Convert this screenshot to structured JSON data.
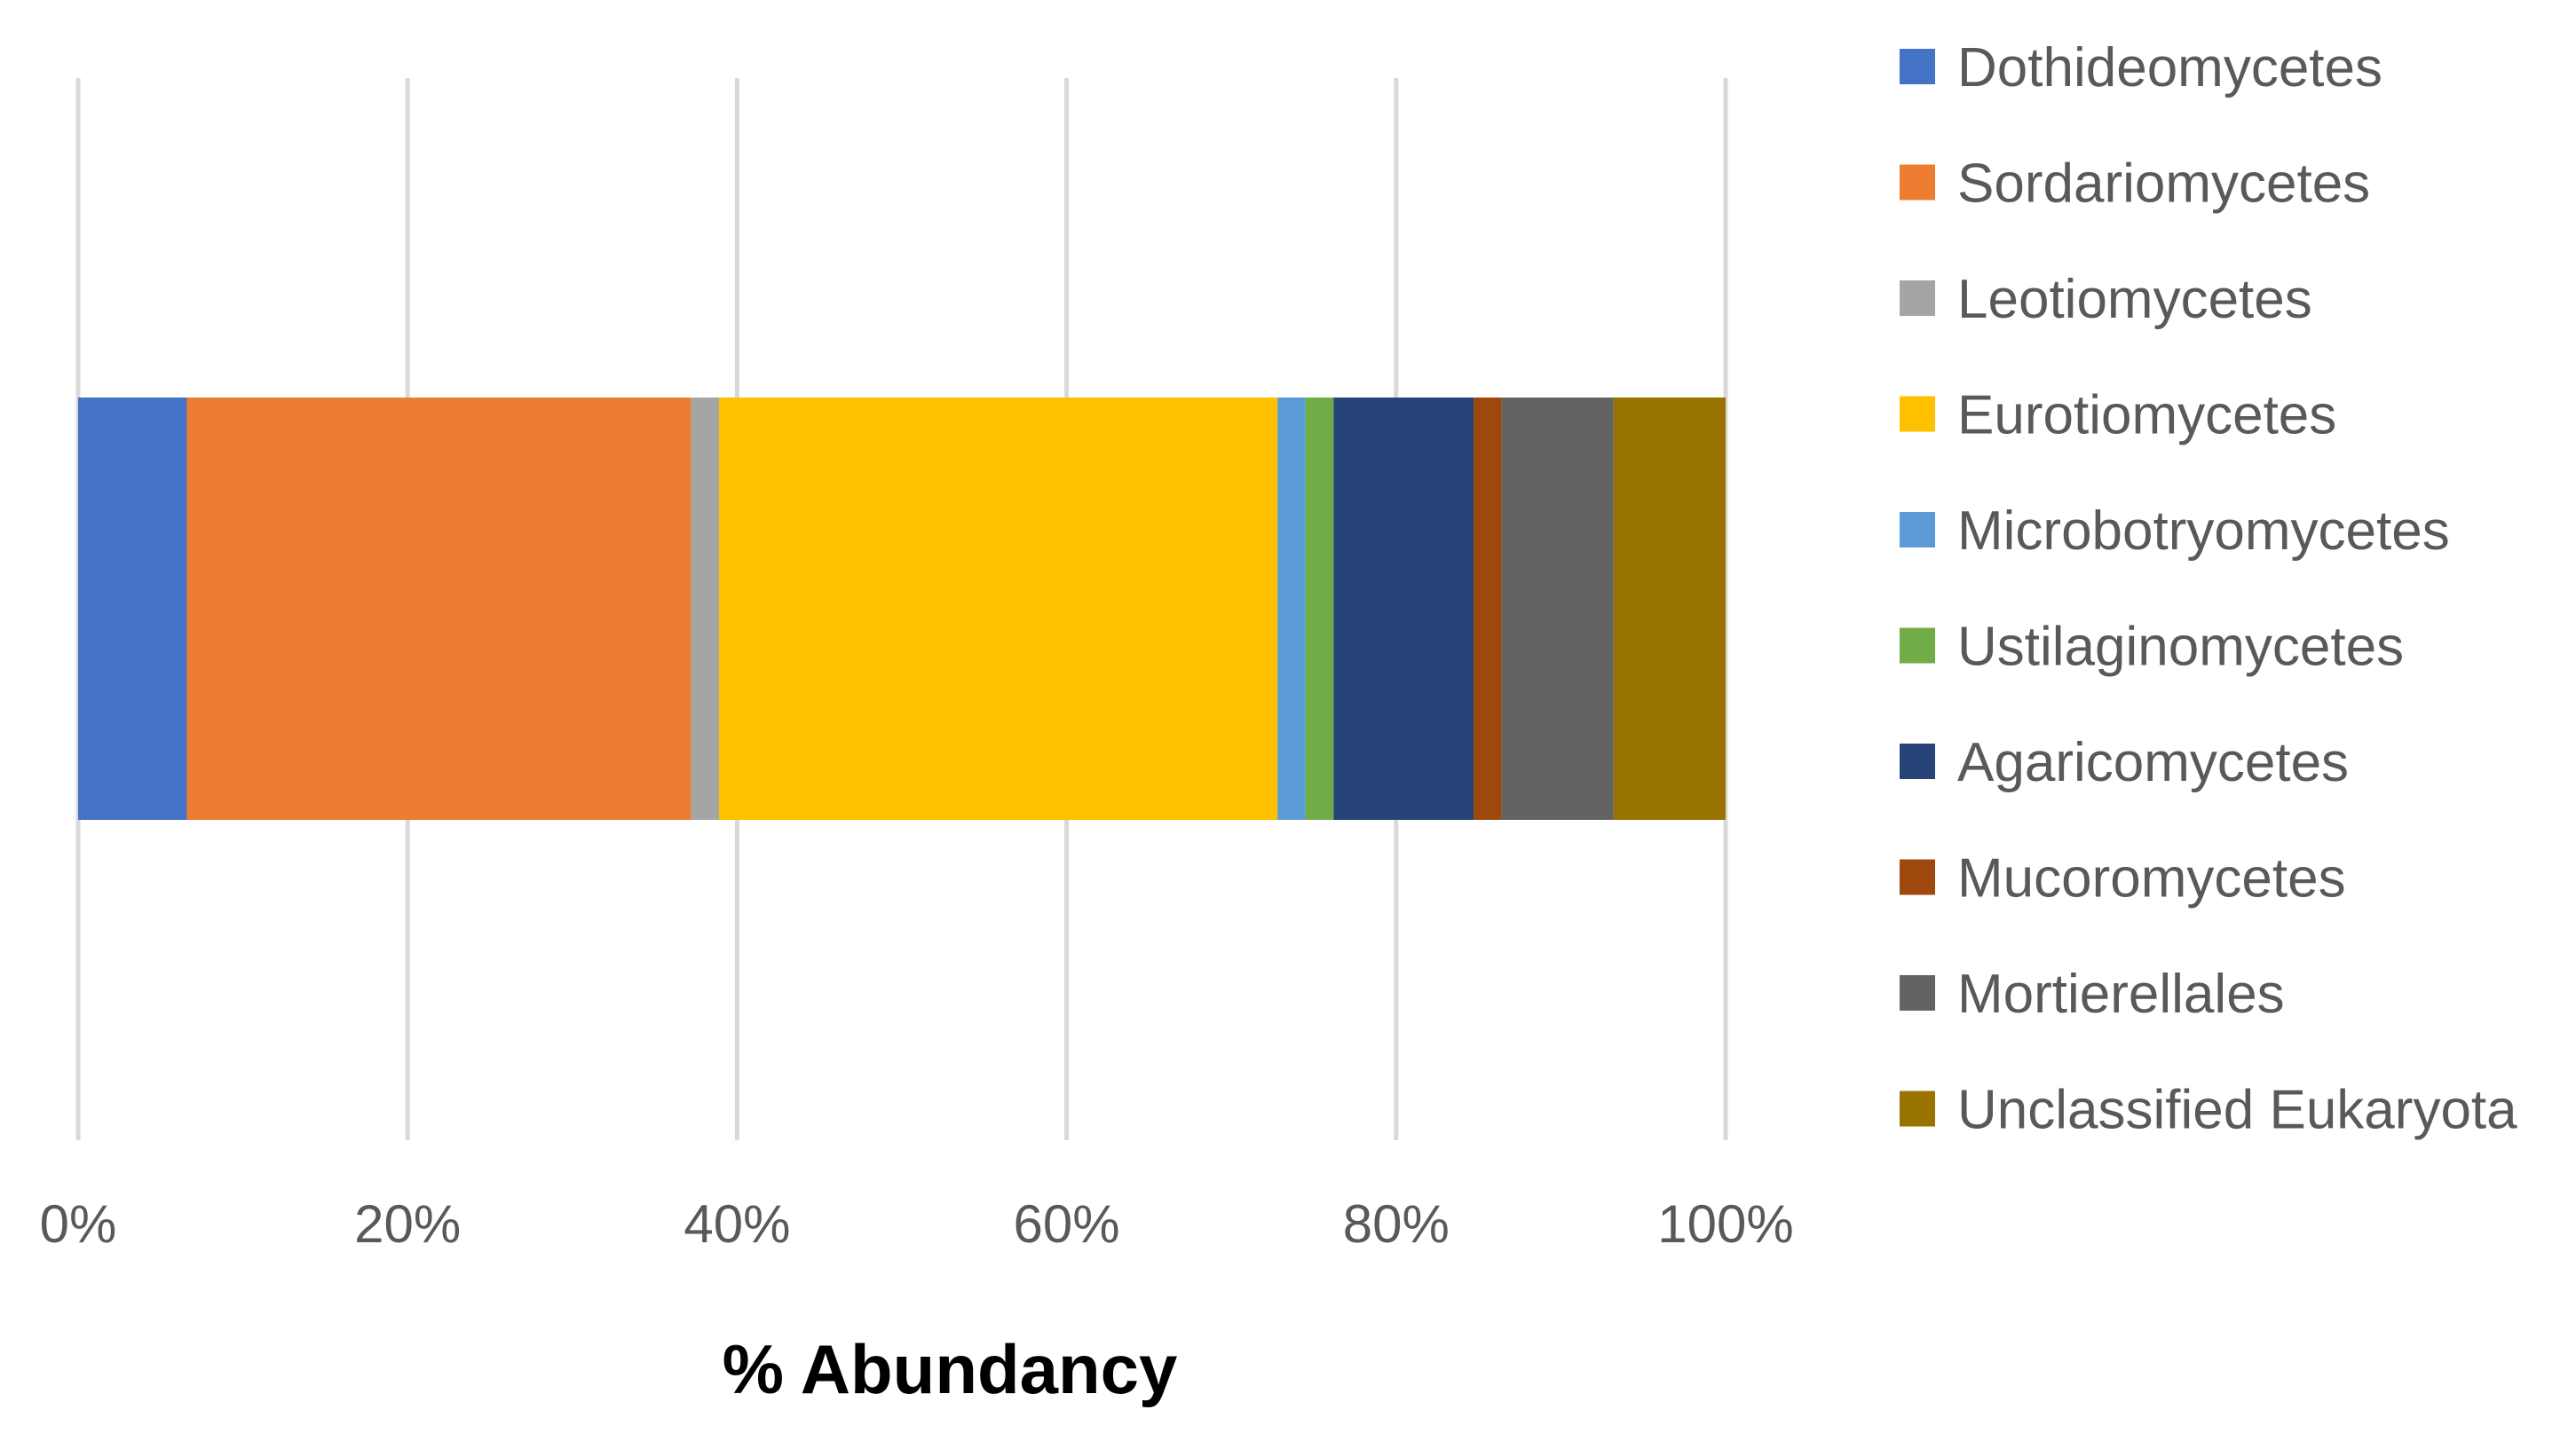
{
  "chart_data": {
    "type": "bar",
    "orientation": "horizontal",
    "stacked": "100%",
    "xlabel": "% Abundancy",
    "ylabel": "",
    "xlim": [
      0,
      100
    ],
    "x_ticks": [
      "0%",
      "20%",
      "40%",
      "60%",
      "80%",
      "100%"
    ],
    "grid": true,
    "legend_position": "right",
    "series": [
      {
        "name": "Dothideomycetes",
        "value": 6.6,
        "color": "#4472C4"
      },
      {
        "name": "Sordariomycetes",
        "value": 30.6,
        "color": "#ED7D31"
      },
      {
        "name": "Leotiomycetes",
        "value": 1.7,
        "color": "#A5A5A5"
      },
      {
        "name": "Eurotiomycetes",
        "value": 33.9,
        "color": "#FFC000"
      },
      {
        "name": "Microbotryomycetes",
        "value": 1.7,
        "color": "#5B9BD5"
      },
      {
        "name": "Ustilaginomycetes",
        "value": 1.7,
        "color": "#70AD47"
      },
      {
        "name": "Agaricomycetes",
        "value": 8.5,
        "color": "#264478"
      },
      {
        "name": "Mucoromycetes",
        "value": 1.7,
        "color": "#9E480E"
      },
      {
        "name": "Mortierellales",
        "value": 6.8,
        "color": "#636363"
      },
      {
        "name": "Unclassified Eukaryota",
        "value": 6.8,
        "color": "#997300"
      }
    ]
  },
  "style": {
    "gridline_color": "#D9D9D9",
    "tick_label_color": "#595959",
    "legend_text_color": "#595959",
    "axis_title_color": "#000000"
  }
}
